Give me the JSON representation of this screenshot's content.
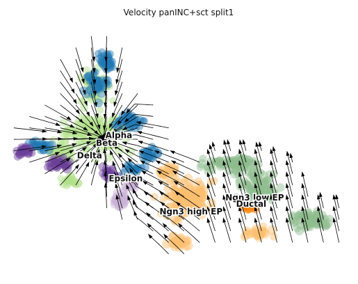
{
  "chart_data": {
    "type": "scatter",
    "title": "Velocity panINC+sct split1",
    "xlabel": "",
    "ylabel": "",
    "axes_visible": false,
    "overlay": "velocity streamlines",
    "xlim": [
      0,
      100
    ],
    "ylim": [
      0,
      100
    ],
    "clusters": [
      {
        "name": "Alpha",
        "color": "#b2df8a",
        "label_at": [
          32.5,
          54.0
        ],
        "blobs": [
          [
            24,
            56,
            13,
            9,
            90
          ],
          [
            25,
            74,
            7,
            12,
            40
          ],
          [
            29,
            55,
            8,
            12,
            35
          ],
          [
            16,
            49,
            6,
            5,
            25
          ],
          [
            18,
            37,
            4,
            3,
            20
          ]
        ]
      },
      {
        "name": "Beta",
        "color": "#1f78b4",
        "label_at": [
          29.0,
          51.0
        ],
        "blobs": [
          [
            29,
            84,
            3,
            5,
            35
          ],
          [
            26,
            75,
            5,
            8,
            40
          ],
          [
            35,
            61,
            6,
            5,
            40
          ],
          [
            9,
            51,
            5,
            3,
            25
          ],
          [
            37,
            42,
            4,
            3,
            20
          ],
          [
            41,
            48,
            4,
            4,
            20
          ]
        ]
      },
      {
        "name": "Delta",
        "color": "#6a3d9a",
        "label_at": [
          24.0,
          46.0
        ],
        "blobs": [
          [
            5,
            49,
            3,
            3,
            25
          ],
          [
            16,
            44,
            6,
            3,
            30
          ],
          [
            30,
            40,
            4,
            3,
            20
          ]
        ]
      },
      {
        "name": "Epsilon",
        "color": "#cab2d6",
        "label_at": [
          34.5,
          37.0
        ],
        "blobs": [
          [
            33,
            30,
            3,
            6,
            35
          ],
          [
            36,
            36,
            3,
            3,
            15
          ]
        ]
      },
      {
        "name": "Ngn3 high EP",
        "color": "#fdbf6f",
        "label_at": [
          53.5,
          24.0
        ],
        "blobs": [
          [
            52,
            30,
            10,
            11,
            140
          ],
          [
            50,
            13,
            4,
            4,
            30
          ],
          [
            47,
            41,
            4,
            4,
            25
          ],
          [
            73,
            17,
            7,
            3,
            25
          ]
        ]
      },
      {
        "name": "Ngn3 low EP",
        "color": "#8fbc8f",
        "label_at": [
          72.0,
          29.5
        ],
        "blobs": [
          [
            67,
            44,
            8,
            5,
            60
          ],
          [
            73,
            35,
            8,
            9,
            80
          ],
          [
            88,
            22,
            9,
            6,
            70
          ],
          [
            60,
            44,
            4,
            4,
            20
          ]
        ]
      },
      {
        "name": "Ductal",
        "color": "#ff7f00",
        "label_at": [
          71.0,
          27.0
        ],
        "blobs": [
          [
            70,
            27,
            3,
            3,
            15
          ]
        ]
      }
    ]
  }
}
